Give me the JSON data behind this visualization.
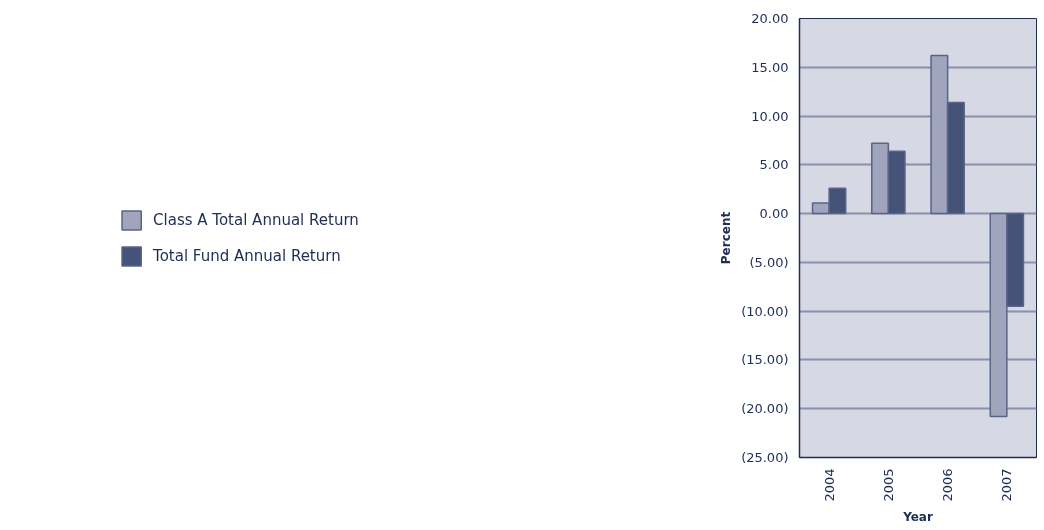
{
  "chart_data": {
    "type": "bar",
    "xlabel": "Year",
    "ylabel": "Percent",
    "categories": [
      "2004",
      "2005",
      "2006",
      "2007"
    ],
    "series": [
      {
        "name": "Class A Total Annual Return",
        "color": "#a0a5bd",
        "values": [
          1.1,
          7.2,
          16.2,
          -20.8
        ]
      },
      {
        "name": "Total Fund Annual Return",
        "color": "#465379",
        "values": [
          2.6,
          6.4,
          11.4,
          -9.5
        ]
      }
    ],
    "ylim": [
      -25,
      20
    ],
    "yticks": [
      {
        "value": -25,
        "label": "(25.00)"
      },
      {
        "value": -20,
        "label": "(20.00)"
      },
      {
        "value": -15,
        "label": "(15.00)"
      },
      {
        "value": -10,
        "label": "(10.00)"
      },
      {
        "value": -5,
        "label": "(5.00)"
      },
      {
        "value": 0,
        "label": "0.00"
      },
      {
        "value": 5,
        "label": "5.00"
      },
      {
        "value": 10,
        "label": "10.00"
      },
      {
        "value": 15,
        "label": "15.00"
      },
      {
        "value": 20,
        "label": "20.00"
      }
    ],
    "grid": "y",
    "legend": "left"
  }
}
